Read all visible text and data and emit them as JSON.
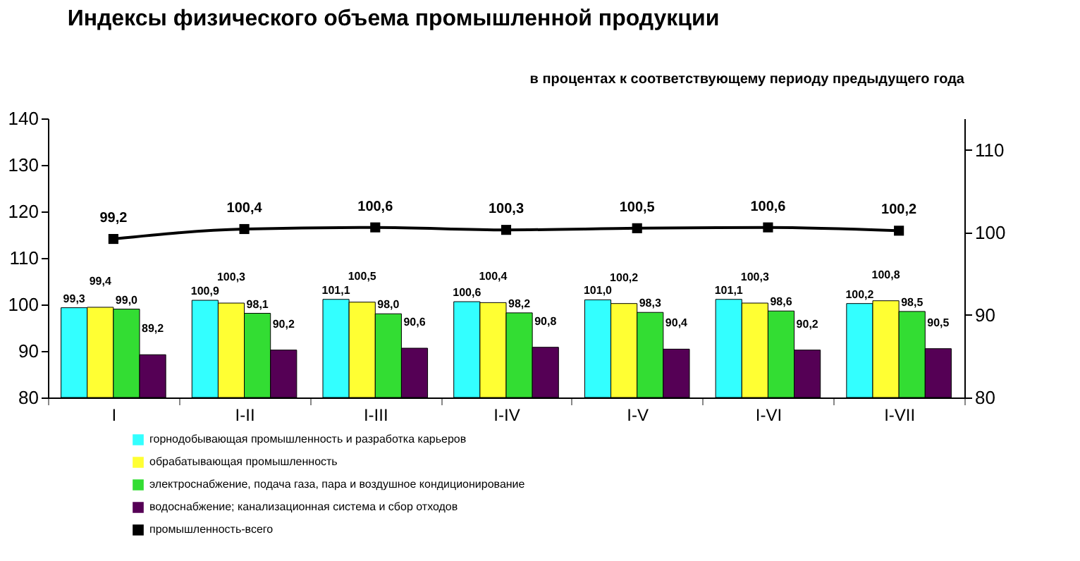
{
  "chart_data": {
    "type": "bar",
    "title": "Индексы физического объема промышленной продукции",
    "subtitle": "в процентах к соответствующему  периоду предыдущего года",
    "categories": [
      "I",
      "I-II",
      "I-III",
      "I-IV",
      "I-V",
      "I-VI",
      "I-VII"
    ],
    "series": [
      {
        "name": "горнодобывающая промышленность и разработка карьеров",
        "color": "#33ffff",
        "values": [
          99.3,
          100.9,
          101.1,
          100.6,
          101.0,
          101.1,
          100.2
        ],
        "value_labels": [
          "99,3",
          "100,9",
          "101,1",
          "100,6",
          "101,0",
          "101,1",
          "100,2"
        ]
      },
      {
        "name": "обрабатывающая промышленность",
        "color": "#ffff33",
        "values": [
          99.4,
          100.3,
          100.5,
          100.4,
          100.2,
          100.3,
          100.8
        ],
        "value_labels": [
          "99,4",
          "100,3",
          "100,5",
          "100,4",
          "100,2",
          "100,3",
          "100,8"
        ]
      },
      {
        "name": "электроснабжение, подача газа, пара и воздушное кондиционирование",
        "color": "#33dd33",
        "values": [
          99.0,
          98.1,
          98.0,
          98.2,
          98.3,
          98.6,
          98.5
        ],
        "value_labels": [
          "99,0",
          "98,1",
          "98,0",
          "98,2",
          "98,3",
          "98,6",
          "98,5"
        ]
      },
      {
        "name": "водоснабжение; канализационная система и сбор отходов",
        "color": "#550055",
        "values": [
          89.2,
          90.2,
          90.6,
          90.8,
          90.4,
          90.2,
          90.5
        ],
        "value_labels": [
          "89,2",
          "90,2",
          "90,6",
          "90,8",
          "90,4",
          "90,2",
          "90,5"
        ]
      },
      {
        "name": "промышленность-всего",
        "type": "line",
        "axis": "y2",
        "marker": "square",
        "color": "#000000",
        "values": [
          99.2,
          100.4,
          100.6,
          100.3,
          100.5,
          100.6,
          100.2
        ],
        "value_labels": [
          "99,2",
          "100,4",
          "100,6",
          "100,3",
          "100,5",
          "100,6",
          "100,2"
        ]
      }
    ],
    "ylim": [
      80,
      140
    ],
    "yticks": [
      80,
      90,
      100,
      110,
      120,
      130,
      140
    ],
    "y2lim": [
      80,
      113.8
    ],
    "y2ticks": [
      80,
      90,
      100,
      110
    ],
    "grid": false,
    "legend": "bottom left"
  }
}
